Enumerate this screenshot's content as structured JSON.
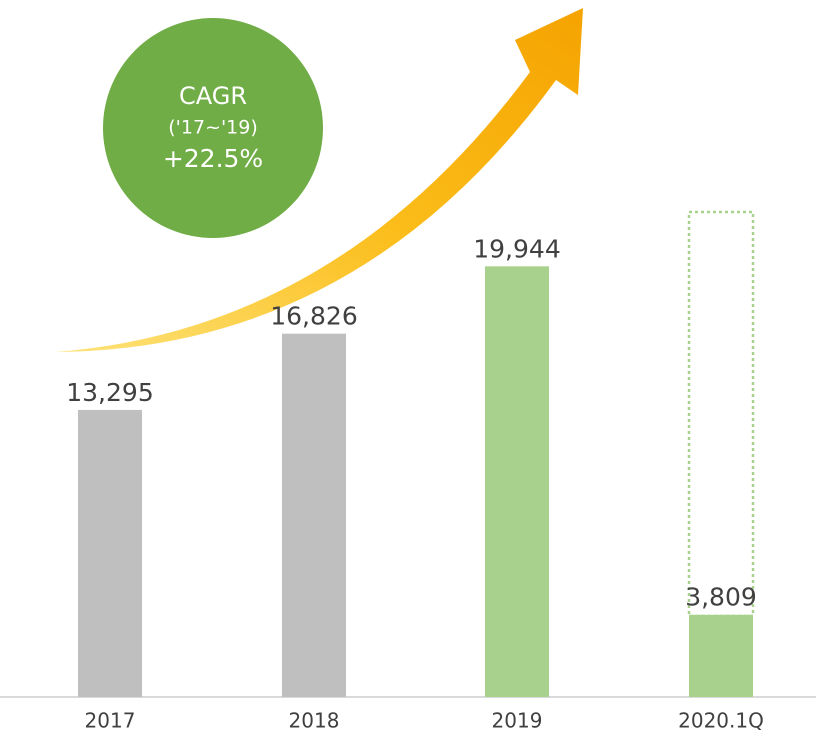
{
  "chart_data": {
    "type": "bar",
    "categories": [
      "2017",
      "2018",
      "2019",
      "2020.1Q"
    ],
    "values": [
      13295,
      16826,
      19944,
      3809
    ],
    "value_labels": [
      "13,295",
      "16,826",
      "19,944",
      "3,809"
    ],
    "colors": [
      "#bfbfbf",
      "#bfbfbf",
      "#a9d18e",
      "#a9d18e"
    ],
    "ylim": [
      0,
      32000
    ],
    "annotations": [
      "CAGR",
      "('17~'19)",
      "+22.5%"
    ]
  }
}
